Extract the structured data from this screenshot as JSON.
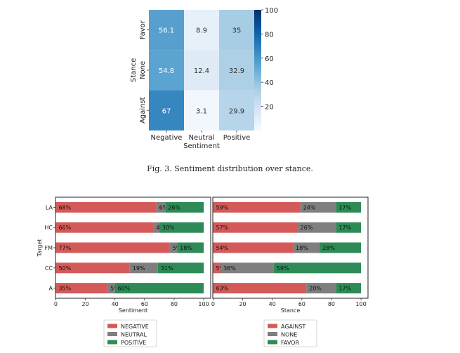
{
  "chart_data": [
    {
      "type": "heatmap",
      "title": "",
      "xlabel": "Sentiment",
      "ylabel": "Stance",
      "x_categories": [
        "Negative",
        "Neutral",
        "Positive"
      ],
      "y_categories": [
        "Favor",
        "None",
        "Against"
      ],
      "values": [
        [
          56.1,
          8.9,
          35
        ],
        [
          54.8,
          12.4,
          32.9
        ],
        [
          67,
          3.1,
          29.9
        ]
      ],
      "value_labels": [
        [
          "56.1",
          "8.9",
          "35"
        ],
        [
          "54.8",
          "12.4",
          "32.9"
        ],
        [
          "67",
          "3.1",
          "29.9"
        ]
      ],
      "colorbar": {
        "min": 0,
        "max": 100,
        "ticks": [
          20,
          40,
          60,
          80,
          100
        ]
      },
      "colormap": [
        "#f7fbff",
        "#deebf7",
        "#c6dbef",
        "#9ecae1",
        "#6baed6",
        "#4292c6",
        "#2171b5",
        "#08519c",
        "#08306b"
      ]
    },
    {
      "type": "bar",
      "stacked": true,
      "orientation": "horizontal",
      "categories": [
        "LA",
        "HC",
        "FM",
        "CC",
        "A"
      ],
      "xlabel": "Sentiment",
      "ylabel": "Target",
      "xlim": [
        0,
        100
      ],
      "xticks": [
        0,
        20,
        40,
        60,
        80,
        100
      ],
      "series": [
        {
          "name": "NEGATIVE",
          "color": "#d45a5a",
          "values": [
            68,
            66,
            77,
            50,
            35
          ],
          "labels": [
            "68%",
            "66%",
            "77%",
            "50%",
            "35%"
          ]
        },
        {
          "name": "NEUTRAL",
          "color": "#7f7f7f",
          "values": [
            6,
            4,
            5,
            19,
            5
          ],
          "labels": [
            "6%",
            "4%",
            "5%",
            "19%",
            "5%"
          ]
        },
        {
          "name": "POSITIVE",
          "color": "#2e8b57",
          "values": [
            26,
            30,
            18,
            31,
            60
          ],
          "labels": [
            "26%",
            "30%",
            "18%",
            "31%",
            "60%"
          ]
        }
      ],
      "legend": "bottom"
    },
    {
      "type": "bar",
      "stacked": true,
      "orientation": "horizontal",
      "categories": [
        "LA",
        "HC",
        "FM",
        "CC",
        "A"
      ],
      "xlabel": "Stance",
      "ylabel": "",
      "xlim": [
        0,
        100
      ],
      "xticks": [
        0,
        20,
        40,
        60,
        80,
        100
      ],
      "series": [
        {
          "name": "AGAINST",
          "color": "#d45a5a",
          "values": [
            59,
            57,
            54,
            5,
            63
          ],
          "labels": [
            "59%",
            "57%",
            "54%",
            "5%",
            "63%"
          ]
        },
        {
          "name": "NONE",
          "color": "#7f7f7f",
          "values": [
            24,
            26,
            18,
            36,
            20
          ],
          "labels": [
            "24%",
            "26%",
            "18%",
            "36%",
            "20%"
          ]
        },
        {
          "name": "FAVOR",
          "color": "#2e8b57",
          "values": [
            17,
            17,
            28,
            59,
            17
          ],
          "labels": [
            "17%",
            "17%",
            "28%",
            "59%",
            "17%"
          ]
        }
      ],
      "legend": "bottom"
    }
  ],
  "caption": "Fig. 3.  Sentiment distribution over stance."
}
